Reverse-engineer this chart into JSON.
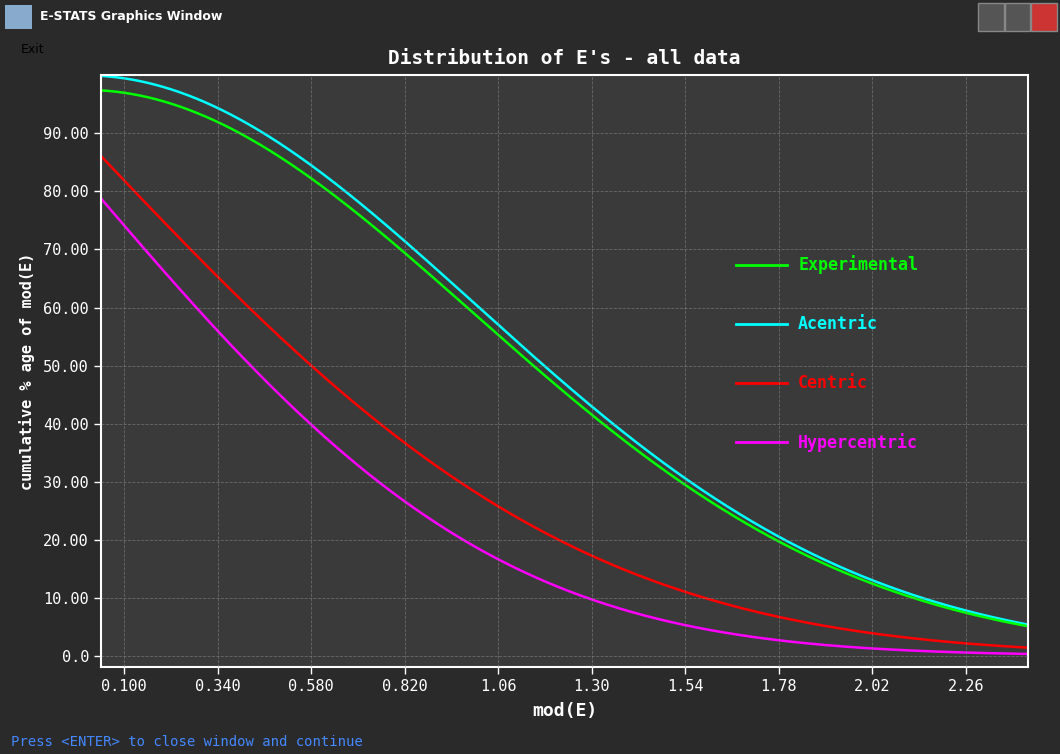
{
  "title": "Distribution of E's - all data",
  "xlabel": "mod(E)",
  "ylabel": "cumulative % age of mod(E)",
  "fig_bg_color": "#2a2a2a",
  "plot_bg_color": "#3a3a3a",
  "title_color": "#ffffff",
  "xlabel_color": "#ffffff",
  "ylabel_color": "#ffffff",
  "tick_color": "#ffffff",
  "grid_color": "#888888",
  "spine_color": "#ffffff",
  "titlebar_bg": "#3c3c3c",
  "titlebar_text": "E-STATS Graphics Window",
  "menubar_bg": "#d4d0c8",
  "menubar_text": "Exit",
  "x_ticks": [
    0.1,
    0.34,
    0.58,
    0.82,
    1.06,
    1.3,
    1.54,
    1.78,
    2.02,
    2.26
  ],
  "x_tick_labels": [
    "0.100",
    "0.340",
    "0.580",
    "0.820",
    "1.06",
    "1.30",
    "1.54",
    "1.78",
    "2.02",
    "2.26"
  ],
  "y_ticks": [
    0.0,
    10.0,
    20.0,
    30.0,
    40.0,
    50.0,
    60.0,
    70.0,
    80.0,
    90.0
  ],
  "y_tick_labels": [
    "0.0",
    "10.00",
    "20.00",
    "30.00",
    "40.00",
    "50.00",
    "60.00",
    "70.00",
    "80.00",
    "90.00"
  ],
  "xlim": [
    0.04,
    2.42
  ],
  "ylim": [
    -2,
    100
  ],
  "lines": {
    "Experimental": {
      "color": "#00ff00",
      "lw": 1.8
    },
    "Acentric": {
      "color": "#00ffff",
      "lw": 1.8
    },
    "Centric": {
      "color": "#ff0000",
      "lw": 1.8
    },
    "Hypercentric": {
      "color": "#ff00ff",
      "lw": 1.8
    }
  },
  "legend_entries": [
    {
      "label": "Experimental",
      "color": "#00ff00"
    },
    {
      "label": "Acentric",
      "color": "#00ffff"
    },
    {
      "label": "Centric",
      "color": "#ff0000"
    },
    {
      "label": "Hypercentric",
      "color": "#ff00ff"
    }
  ],
  "footer_text": "Press <ENTER> to close window and continue",
  "footer_color": "#4488ff"
}
